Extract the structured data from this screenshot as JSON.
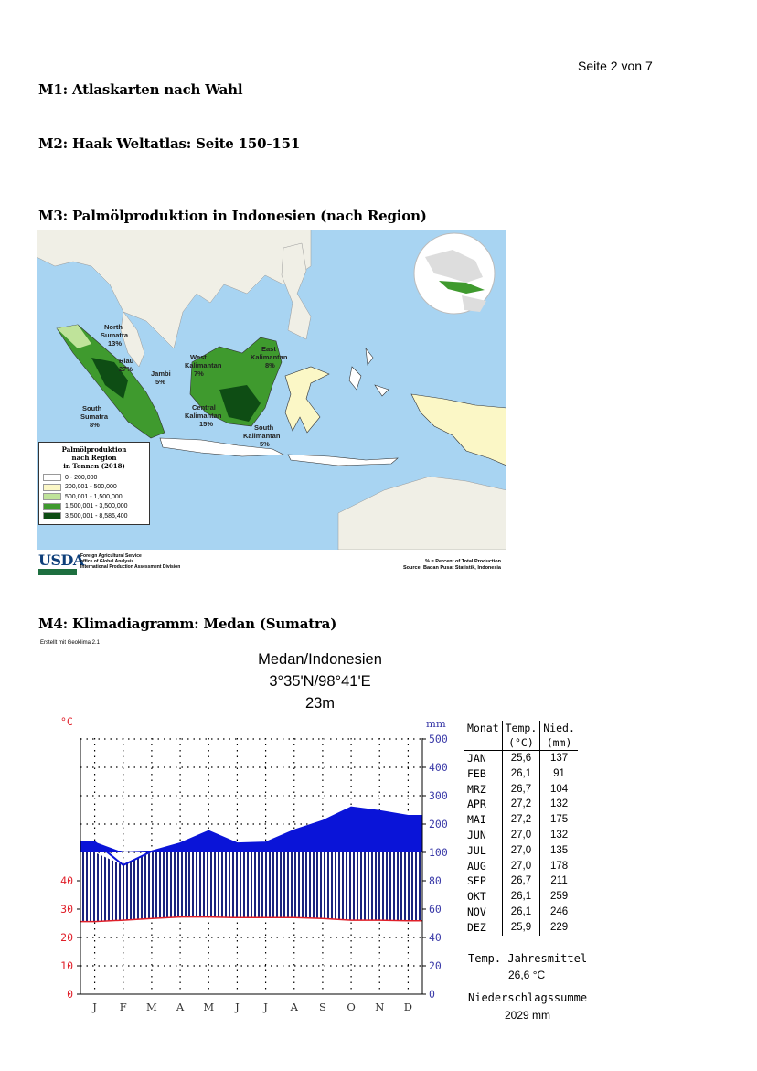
{
  "page_number": "Seite 2 von 7",
  "headings": {
    "m1": "M1: Atlaskarten nach Wahl",
    "m2": "M2: Haak Weltatlas: Seite 150-151",
    "m3": "M3: Palmölproduktion in Indonesien (nach Region)",
    "m4": "M4: Klimadiagramm: Medan (Sumatra)"
  },
  "map": {
    "regions": {
      "north_sumatra": [
        "North",
        "Sumatra",
        "13%"
      ],
      "riau": [
        "Riau",
        "27%"
      ],
      "jambi": [
        "Jambi",
        "5%"
      ],
      "south_sumatra": [
        "South",
        "Sumatra",
        "8%"
      ],
      "west_kalimantan": [
        "West",
        "Kalimantan",
        "7%"
      ],
      "east_kalimantan": [
        "East",
        "Kalimantan",
        "8%"
      ],
      "central_kalimantan": [
        "Central",
        "Kalimantan",
        "15%"
      ],
      "south_kalimantan": [
        "South",
        "Kalimantan",
        "5%"
      ]
    },
    "legend": {
      "title": [
        "Palmölproduktion",
        "nach Region",
        "in Tonnen (2018)"
      ],
      "items": [
        {
          "label": "0 - 200,000",
          "color": "#ffffff"
        },
        {
          "label": "200,001 - 500,000",
          "color": "#fbf7c6"
        },
        {
          "label": "500,001 - 1,500,000",
          "color": "#bfe39a"
        },
        {
          "label": "1,500,001 - 3,500,000",
          "color": "#3f9a2e"
        },
        {
          "label": "3,500,001 - 8,586,400",
          "color": "#0e4d14"
        }
      ]
    },
    "usda": {
      "logo": "USDA",
      "lines": [
        "Foreign Agricultural Service",
        "office of Global Analysis",
        "International Production Assessment Division"
      ]
    },
    "source": [
      "% = Percent of Total Production",
      "Source: Badan Pusat Statistik, Indonesia"
    ]
  },
  "climate": {
    "credit": "Erstellt mit Geoklima 2.1",
    "station": "Medan/Indonesien",
    "coords": "3°35'N/98°41'E",
    "elevation": "23m",
    "temp_unit": "°C",
    "precip_unit": "mm",
    "temp_ticks": [
      "0",
      "10",
      "20",
      "30",
      "40"
    ],
    "precip_ticks": [
      "0",
      "20",
      "40",
      "60",
      "80",
      "100",
      "200",
      "300",
      "400",
      "500"
    ],
    "month_letters": [
      "J",
      "F",
      "M",
      "A",
      "M",
      "J",
      "J",
      "A",
      "S",
      "O",
      "N",
      "D"
    ],
    "table_header": {
      "month": "Monat",
      "temp": "Temp.",
      "temp_unit": "(°C)",
      "precip": "Nied.",
      "precip_unit": "(mm)"
    },
    "months": [
      {
        "m": "JAN",
        "t": "25,6",
        "p": "137"
      },
      {
        "m": "FEB",
        "t": "26,1",
        "p": "91"
      },
      {
        "m": "MRZ",
        "t": "26,7",
        "p": "104"
      },
      {
        "m": "APR",
        "t": "27,2",
        "p": "132"
      },
      {
        "m": "MAI",
        "t": "27,2",
        "p": "175"
      },
      {
        "m": "JUN",
        "t": "27,0",
        "p": "132"
      },
      {
        "m": "JUL",
        "t": "27,0",
        "p": "135"
      },
      {
        "m": "AUG",
        "t": "27,0",
        "p": "178"
      },
      {
        "m": "SEP",
        "t": "26,7",
        "p": "211"
      },
      {
        "m": "OKT",
        "t": "26,1",
        "p": "259"
      },
      {
        "m": "NOV",
        "t": "26,1",
        "p": "246"
      },
      {
        "m": "DEZ",
        "t": "25,9",
        "p": "229"
      }
    ],
    "year_mean_label": "Temp.-Jahresmittel",
    "year_mean": "26,6 °C",
    "precip_sum_label": "Niederschlagssumme",
    "precip_sum": "2029 mm"
  }
}
